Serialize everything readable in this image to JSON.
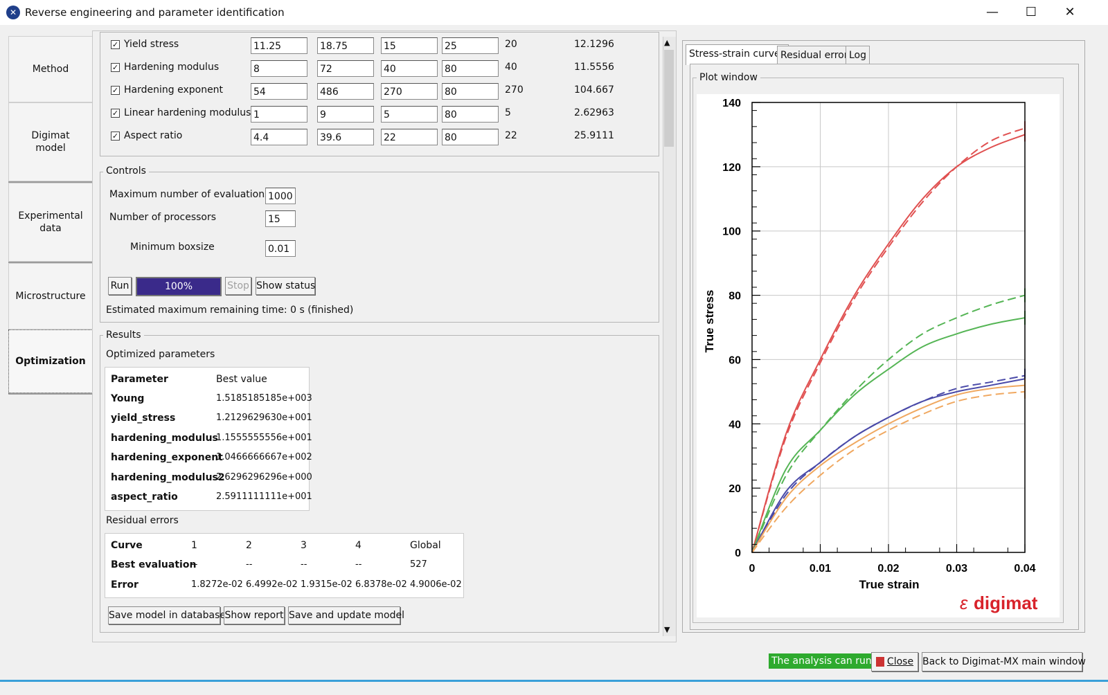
{
  "window": {
    "title": "Reverse engineering and parameter identification",
    "app_icon": "x-logo-icon"
  },
  "nav": [
    {
      "label": "Method"
    },
    {
      "label": "Digimat\nmodel"
    },
    {
      "label": "Experimental\ndata"
    },
    {
      "label": "Microstructure"
    },
    {
      "label": "Optimization",
      "active": true
    }
  ],
  "parameters": [
    {
      "name": "Yield stress",
      "v1": "11.25",
      "v2": "18.75",
      "v3": "15",
      "v4": "25",
      "initial": "20",
      "result": "12.1296"
    },
    {
      "name": "Hardening modulus",
      "v1": "8",
      "v2": "72",
      "v3": "40",
      "v4": "80",
      "initial": "40",
      "result": "11.5556"
    },
    {
      "name": "Hardening exponent",
      "v1": "54",
      "v2": "486",
      "v3": "270",
      "v4": "80",
      "initial": "270",
      "result": "104.667"
    },
    {
      "name": "Linear hardening modulus",
      "v1": "1",
      "v2": "9",
      "v3": "5",
      "v4": "80",
      "initial": "5",
      "result": "2.62963"
    },
    {
      "name": "Aspect ratio",
      "v1": "4.4",
      "v2": "39.6",
      "v3": "22",
      "v4": "80",
      "initial": "22",
      "result": "25.9111"
    }
  ],
  "controls": {
    "title": "Controls",
    "max_eval_label": "Maximum number of evaluations",
    "max_eval": "1000",
    "processors_label": "Number of processors",
    "processors": "15",
    "boxsize_label": "Minimum boxsize",
    "boxsize": "0.01",
    "run": "Run",
    "progress_text": "100%",
    "progress": 1.0,
    "stop": "Stop",
    "show_status": "Show status",
    "remaining": "Estimated maximum remaining time: 0 s (finished)"
  },
  "results": {
    "title": "Results",
    "optimized_label": "Optimized parameters",
    "param_header": [
      "Parameter",
      "Best value"
    ],
    "params": [
      [
        "Young",
        "1.5185185185e+003"
      ],
      [
        "yield_stress",
        "1.2129629630e+001"
      ],
      [
        "hardening_modulus",
        "1.1555555556e+001"
      ],
      [
        "hardening_exponent",
        "1.0466666667e+002"
      ],
      [
        "hardening_modulus2",
        "2.6296296296e+000"
      ],
      [
        "aspect_ratio",
        "2.5911111111e+001"
      ]
    ],
    "residual_label": "Residual errors",
    "residual_header": [
      "Curve",
      "1",
      "2",
      "3",
      "4",
      "Global"
    ],
    "residual_rows": [
      [
        "Best evaluation",
        "--",
        "--",
        "--",
        "--",
        "527"
      ],
      [
        "Error",
        "1.8272e-02",
        "6.4992e-02",
        "1.9315e-02",
        "6.8378e-02",
        "4.9006e-02"
      ]
    ],
    "save_db": "Save model in database",
    "show_report": "Show report",
    "save_update": "Save and update model"
  },
  "tabs": [
    "Stress-strain curves",
    "Residual error",
    "Log"
  ],
  "plot_window_label": "Plot window",
  "brand": "digimat",
  "status_text": "The analysis can run.",
  "close_label": "Close",
  "back_label": "Back to Digimat-MX main window",
  "colors": {
    "red": "#e05050",
    "green": "#55b555",
    "blue": "#4a4aa8",
    "orange": "#f0a860",
    "progress": "#3a2a8a"
  },
  "chart_data": {
    "type": "line",
    "xlabel": "True strain",
    "ylabel": "True stress",
    "xlim": [
      0,
      0.04
    ],
    "ylim": [
      0,
      140
    ],
    "xticks": [
      "0",
      "0.01",
      "0.02",
      "0.03",
      "0.04"
    ],
    "yticks": [
      "0",
      "20",
      "40",
      "60",
      "80",
      "100",
      "120",
      "140"
    ],
    "grid": true,
    "series": [
      {
        "color": "#e05050",
        "dash": false,
        "x": [
          0,
          0.005,
          0.01,
          0.015,
          0.02,
          0.025,
          0.03,
          0.035,
          0.04
        ],
        "y": [
          0,
          37,
          60,
          80,
          96,
          110,
          120,
          126,
          130
        ]
      },
      {
        "color": "#e05050",
        "dash": true,
        "x": [
          0,
          0.005,
          0.01,
          0.015,
          0.02,
          0.025,
          0.03,
          0.035,
          0.04
        ],
        "y": [
          0,
          36,
          59,
          79,
          95,
          109,
          120,
          128,
          132
        ]
      },
      {
        "color": "#55b555",
        "dash": false,
        "x": [
          0,
          0.005,
          0.01,
          0.015,
          0.02,
          0.025,
          0.03,
          0.035,
          0.04
        ],
        "y": [
          0,
          26,
          38,
          49,
          57,
          64,
          68,
          71,
          73
        ]
      },
      {
        "color": "#55b555",
        "dash": true,
        "x": [
          0,
          0.005,
          0.01,
          0.015,
          0.02,
          0.025,
          0.03,
          0.035,
          0.04
        ],
        "y": [
          0,
          24,
          38,
          50,
          60,
          68,
          73,
          77,
          80
        ]
      },
      {
        "color": "#4a4aa8",
        "dash": false,
        "x": [
          0,
          0.005,
          0.01,
          0.015,
          0.02,
          0.025,
          0.03,
          0.035,
          0.04
        ],
        "y": [
          0,
          19,
          28,
          36,
          42,
          47,
          50,
          52,
          54
        ]
      },
      {
        "color": "#4a4aa8",
        "dash": true,
        "x": [
          0,
          0.005,
          0.01,
          0.015,
          0.02,
          0.025,
          0.03,
          0.035,
          0.04
        ],
        "y": [
          0,
          18,
          28,
          36,
          42,
          47,
          51,
          53,
          55
        ]
      },
      {
        "color": "#f0a860",
        "dash": false,
        "x": [
          0,
          0.005,
          0.01,
          0.015,
          0.02,
          0.025,
          0.03,
          0.035,
          0.04
        ],
        "y": [
          0,
          17,
          27,
          34,
          40,
          45,
          49,
          51,
          52
        ]
      },
      {
        "color": "#f0a860",
        "dash": true,
        "x": [
          0,
          0.005,
          0.01,
          0.015,
          0.02,
          0.025,
          0.03,
          0.035,
          0.04
        ],
        "y": [
          0,
          14,
          24,
          32,
          38,
          43,
          47,
          49,
          50
        ]
      }
    ]
  }
}
